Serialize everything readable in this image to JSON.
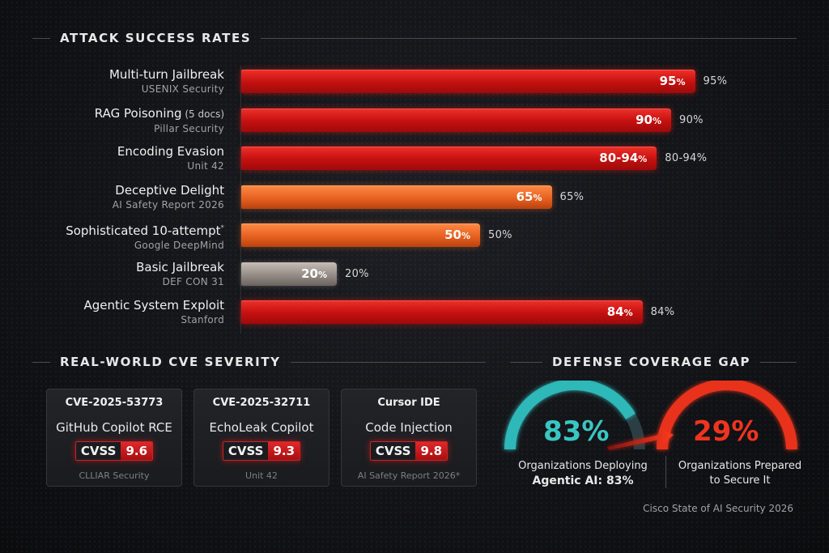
{
  "sections": {
    "attack": "ATTACK SUCCESS RATES",
    "cve": "REAL-WORLD CVE SEVERITY",
    "defense": "DEFENSE COVERAGE GAP"
  },
  "chart_data": {
    "type": "bar",
    "orientation": "horizontal",
    "title": "ATTACK SUCCESS RATES",
    "xlim": [
      0,
      100
    ],
    "unit": "%",
    "categories": [
      "Multi-turn Jailbreak",
      "RAG Poisoning",
      "Encoding Evasion",
      "Deceptive Delight",
      "Sophisticated 10-attempt",
      "Basic Jailbreak",
      "Agentic System Exploit"
    ],
    "category_notes": [
      "",
      "(5 docs)",
      "",
      "",
      "*",
      "",
      ""
    ],
    "sources": [
      "USENIX Security",
      "Pillar Security",
      "Unit 42",
      "AI Safety Report 2026",
      "Google DeepMind",
      "DEF CON 31",
      "Stanford"
    ],
    "values": [
      95,
      90,
      87,
      65,
      50,
      20,
      84
    ],
    "range_values": [
      null,
      null,
      [
        80,
        94
      ],
      null,
      null,
      null,
      null
    ],
    "display_values": [
      "95%",
      "90%",
      "80-94%",
      "65%",
      "50%",
      "20%",
      "84%"
    ],
    "colors": [
      "red",
      "red",
      "red",
      "orange",
      "orange",
      "gray",
      "red"
    ]
  },
  "cves": [
    {
      "id": "CVE-2025-53773",
      "desc": "GitHub Copilot RCE",
      "cvss_label": "CVSS",
      "score": "9.6",
      "source": "CLLIAR Security"
    },
    {
      "id": "CVE-2025-32711",
      "desc": "EchoLeak Copilot",
      "cvss_label": "CVSS",
      "score": "9.3",
      "source": "Unit 42"
    },
    {
      "id": "Cursor IDE",
      "desc": "Code Injection",
      "cvss_label": "CVSS",
      "score": "9.8",
      "source": "AI Safety Report 2026*"
    }
  ],
  "gauges": [
    {
      "value": 83,
      "label": "83%",
      "caption_line1": "Organizations Deploying",
      "caption_line2": "Agentic AI: 83%",
      "color": "#2fb8b8"
    },
    {
      "value": 29,
      "label": "29%",
      "caption_line1": "Organizations Prepared",
      "caption_line2": "to Secure It",
      "color": "#e8321f"
    }
  ],
  "footnote": "Cisco State of AI Security 2026"
}
